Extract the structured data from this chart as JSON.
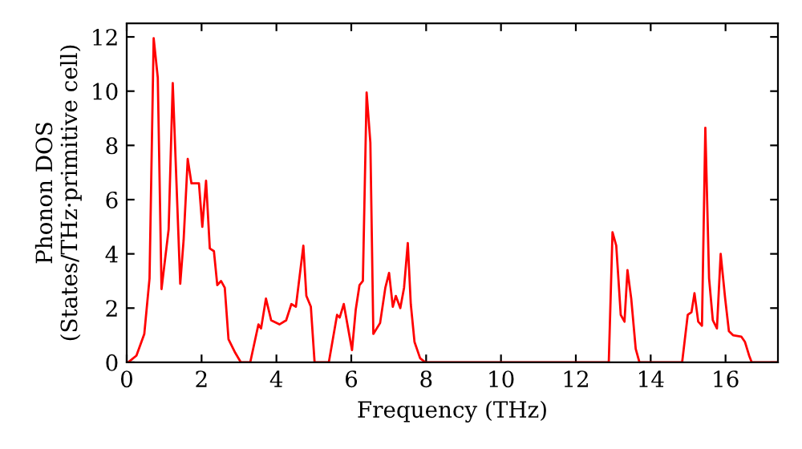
{
  "chart_data": {
    "type": "line",
    "xlabel": "Frequency (THz)",
    "ylabel": "Phonon DOS\n(States/THz·primitive cell)",
    "x": [
      0,
      0.04,
      0.26,
      0.47,
      0.61,
      0.72,
      0.83,
      0.93,
      1.12,
      1.23,
      1.43,
      1.52,
      1.63,
      1.73,
      1.93,
      2.02,
      2.12,
      2.22,
      2.33,
      2.42,
      2.52,
      2.62,
      2.72,
      2.9,
      3.05,
      3.3,
      3.52,
      3.59,
      3.72,
      3.86,
      4.08,
      4.26,
      4.4,
      4.52,
      4.72,
      4.8,
      4.92,
      5.02,
      5.4,
      5.62,
      5.69,
      5.8,
      6.02,
      6.12,
      6.22,
      6.31,
      6.41,
      6.51,
      6.59,
      6.77,
      6.91,
      7.01,
      7.11,
      7.19,
      7.31,
      7.41,
      7.51,
      7.59,
      7.69,
      7.84,
      7.98,
      12.88,
      12.98,
      13.08,
      13.2,
      13.3,
      13.38,
      13.48,
      13.6,
      13.7,
      14.84,
      14.99,
      15.09,
      15.17,
      15.27,
      15.37,
      15.46,
      15.56,
      15.66,
      15.77,
      15.87,
      15.99,
      16.09,
      16.2,
      16.42,
      16.52,
      16.63,
      16.7,
      17.4
    ],
    "series": [
      {
        "color": "#ff0000",
        "values": [
          0,
          0,
          0.25,
          1.05,
          3.1,
          11.95,
          10.5,
          2.7,
          4.9,
          10.3,
          2.9,
          4.5,
          7.5,
          6.6,
          6.6,
          5.0,
          6.7,
          4.2,
          4.1,
          2.85,
          3.0,
          2.75,
          0.85,
          0.35,
          0,
          0,
          1.4,
          1.25,
          2.35,
          1.55,
          1.4,
          1.55,
          2.15,
          2.05,
          4.3,
          2.45,
          2.05,
          0,
          0,
          1.75,
          1.65,
          2.15,
          0.45,
          1.95,
          2.85,
          3.0,
          9.95,
          8.1,
          1.05,
          1.45,
          2.75,
          3.3,
          2.05,
          2.45,
          2.0,
          2.75,
          4.4,
          2.15,
          0.75,
          0.15,
          0,
          0,
          4.8,
          4.3,
          1.75,
          1.5,
          3.4,
          2.35,
          0.5,
          0,
          0,
          1.75,
          1.85,
          2.55,
          1.5,
          1.35,
          8.65,
          3.1,
          1.55,
          1.25,
          4.0,
          2.35,
          1.15,
          1.0,
          0.95,
          0.75,
          0.25,
          0,
          0
        ]
      }
    ],
    "xlim": [
      0,
      17.4
    ],
    "ylim": [
      0,
      12.5
    ],
    "xticks": [
      0,
      2,
      4,
      6,
      8,
      10,
      12,
      14,
      16
    ],
    "yticks": [
      0,
      2,
      4,
      6,
      8,
      10,
      12
    ],
    "grid": false,
    "line_style": "solid",
    "marker": "none"
  }
}
